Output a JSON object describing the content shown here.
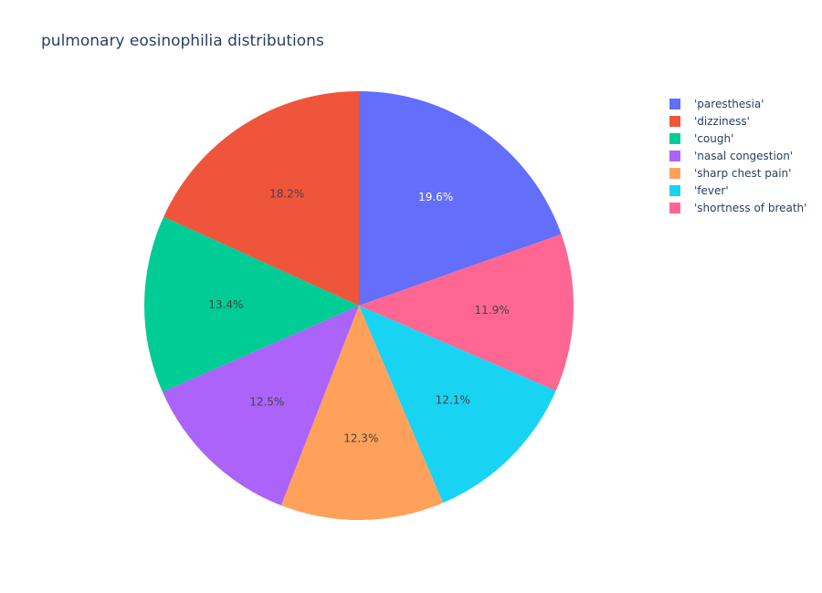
{
  "chart_data": {
    "type": "pie",
    "title": "pulmonary eosinophilia distributions",
    "direction": "clockwise",
    "start_angle": "12 o'clock",
    "legend_position": "top-right",
    "slices": [
      {
        "name": "'paresthesia'",
        "value": 19.6,
        "label": "19.6%",
        "color": "#636efa",
        "label_color": "#ffffff"
      },
      {
        "name": "'shortness of breath'",
        "value": 11.9,
        "label": "11.9%",
        "color": "#ff6692",
        "label_color": "#444444"
      },
      {
        "name": "'fever'",
        "value": 12.1,
        "label": "12.1%",
        "color": "#19d3f3",
        "label_color": "#444444"
      },
      {
        "name": "'sharp chest pain'",
        "value": 12.3,
        "label": "12.3%",
        "color": "#ffa15a",
        "label_color": "#444444"
      },
      {
        "name": "'nasal congestion'",
        "value": 12.5,
        "label": "12.5%",
        "color": "#ab63fa",
        "label_color": "#444444"
      },
      {
        "name": "'cough'",
        "value": 13.4,
        "label": "13.4%",
        "color": "#00cc96",
        "label_color": "#444444"
      },
      {
        "name": "'dizziness'",
        "value": 18.2,
        "label": "18.2%",
        "color": "#ef553b",
        "label_color": "#444444"
      }
    ],
    "legend": [
      {
        "name": "'paresthesia'",
        "color": "#636efa"
      },
      {
        "name": "'dizziness'",
        "color": "#ef553b"
      },
      {
        "name": "'cough'",
        "color": "#00cc96"
      },
      {
        "name": "'nasal congestion'",
        "color": "#ab63fa"
      },
      {
        "name": "'sharp chest pain'",
        "color": "#ffa15a"
      },
      {
        "name": "'fever'",
        "color": "#19d3f3"
      },
      {
        "name": "'shortness of breath'",
        "color": "#ff6692"
      }
    ]
  }
}
